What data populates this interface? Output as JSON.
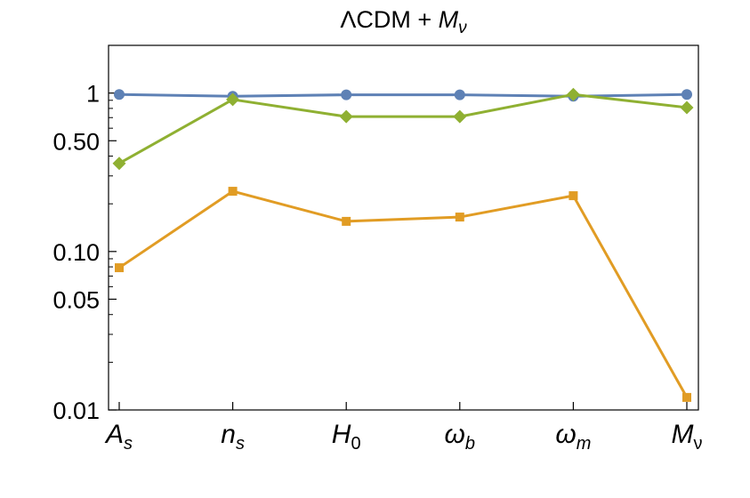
{
  "chart_data": {
    "type": "line",
    "title": "ΛCDM + M_ν",
    "title_parts": {
      "main": "ΛCDM + ",
      "var": "M",
      "sub": "ν"
    },
    "yscale": "log",
    "ylim": [
      0.01,
      2.0
    ],
    "yticks": [
      {
        "value": 1,
        "label": "1"
      },
      {
        "value": 0.5,
        "label": "0.50"
      },
      {
        "value": 0.1,
        "label": "0.10"
      },
      {
        "value": 0.05,
        "label": "0.05"
      },
      {
        "value": 0.01,
        "label": "0.01"
      }
    ],
    "categories": [
      {
        "main": "A",
        "sub": "s",
        "sub_italic": true
      },
      {
        "main": "n",
        "sub": "s",
        "sub_italic": true
      },
      {
        "main": "H",
        "sub": "0",
        "sub_italic": false
      },
      {
        "main": "ω",
        "sub": "b",
        "sub_italic": true
      },
      {
        "main": "ω",
        "sub": "m",
        "sub_italic": true
      },
      {
        "main": "M",
        "sub": "ν",
        "sub_italic": false
      }
    ],
    "series": [
      {
        "name": "blue",
        "color": "#5e81b5",
        "marker": "circle",
        "values": [
          0.98,
          0.955,
          0.975,
          0.975,
          0.955,
          0.98
        ]
      },
      {
        "name": "orange",
        "color": "#e19c24",
        "marker": "square",
        "values": [
          0.079,
          0.24,
          0.155,
          0.165,
          0.225,
          0.012
        ]
      },
      {
        "name": "green",
        "color": "#8fb032",
        "marker": "diamond",
        "values": [
          0.36,
          0.91,
          0.71,
          0.71,
          0.98,
          0.81
        ]
      }
    ]
  }
}
